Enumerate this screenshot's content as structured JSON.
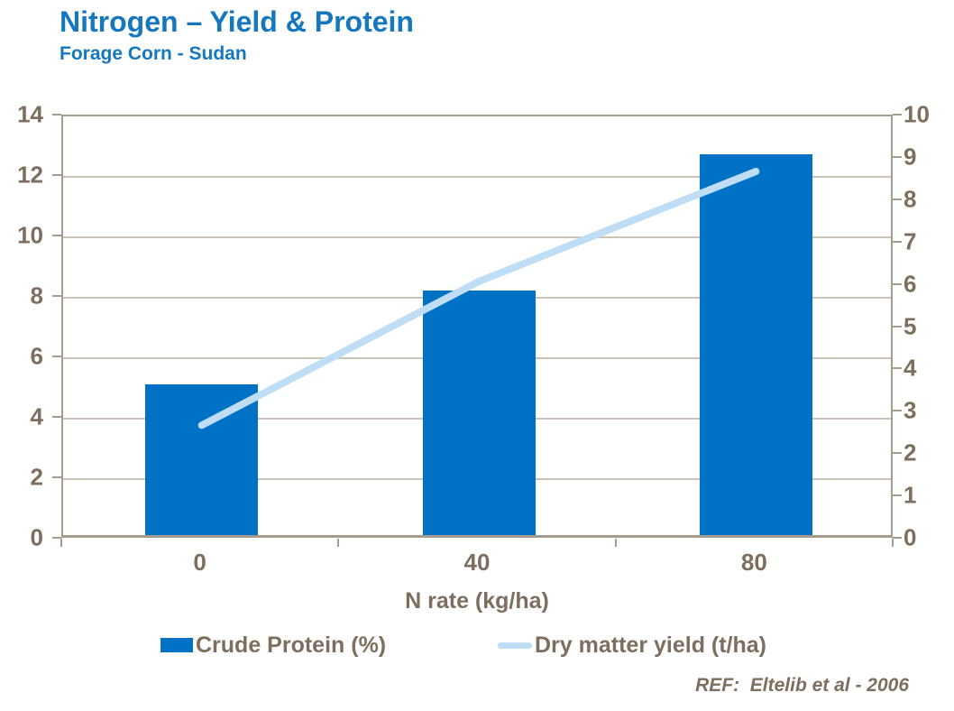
{
  "header": {
    "title": "Nitrogen – Yield & Protein",
    "subtitle": "Forage Corn - Sudan"
  },
  "footer": {
    "ref": "REF:  Eltelib et al - 2006"
  },
  "chart_data": {
    "type": "combo",
    "categories": [
      "0",
      "40",
      "80"
    ],
    "series": [
      {
        "name": "Crude Protein (%)",
        "type": "bar",
        "axis": "left",
        "values": [
          5.0,
          8.1,
          12.6
        ]
      },
      {
        "name": "Dry matter yield (t/ha)",
        "type": "line",
        "axis": "right",
        "values": [
          2.7,
          6.1,
          8.7
        ]
      }
    ],
    "xlabel": "N rate (kg/ha)",
    "left_axis": {
      "min": 0,
      "max": 14,
      "step": 2
    },
    "right_axis": {
      "min": 0,
      "max": 10,
      "step": 1
    },
    "grid": true,
    "legend_position": "bottom"
  },
  "colors": {
    "title_blue": "#1577BE",
    "bar_blue": "#0072C6",
    "line_light_blue": "#BFDEF5",
    "label_brown": "#7D6E5D",
    "grid_gray": "#CBC3B8",
    "axis_gray": "#A69C8D"
  }
}
